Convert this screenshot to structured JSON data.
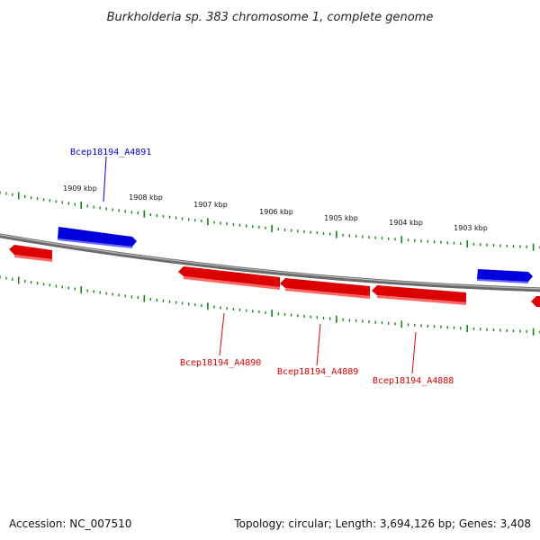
{
  "title": "Burkholderia sp. 383 chromosome 1, complete genome",
  "footer": {
    "accession": "Accession: NC_007510",
    "summary": "Topology: circular; Length: 3,694,126 bp; Genes: 3,408"
  },
  "colors": {
    "forward": "#0000dd",
    "reverse": "#dd0000",
    "tick": "#118811",
    "backbone": "#888888"
  },
  "kbp_labels": [
    "1909 kbp",
    "1908 kbp",
    "1907 kbp",
    "1906 kbp",
    "1905 kbp",
    "1904 kbp",
    "1903 kbp"
  ],
  "genes": [
    {
      "label": "Bcep18194_A4891",
      "strand": "forward"
    },
    {
      "label": "Bcep18194_A4890",
      "strand": "reverse"
    },
    {
      "label": "Bcep18194_A4889",
      "strand": "reverse"
    },
    {
      "label": "Bcep18194_A4888",
      "strand": "reverse"
    }
  ]
}
